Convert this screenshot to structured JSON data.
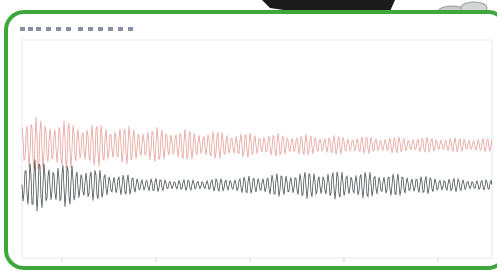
{
  "chart_panel": {
    "traces": [
      {
        "color": "#e6a39c"
      },
      {
        "color": "#4d5358"
      }
    ]
  }
}
